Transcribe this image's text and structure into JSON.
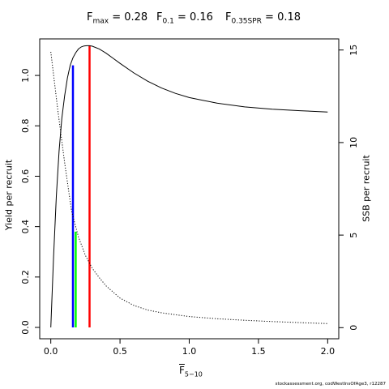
{
  "title": {
    "fmax": {
      "base": "F",
      "sub": "max",
      "value": " = 0.28"
    },
    "f01": {
      "base": "F",
      "sub": "0.1",
      "value": " = 0.16"
    },
    "fspr": {
      "base": "F",
      "sub": "0.35SPR",
      "value": " = 0.18"
    }
  },
  "footer": "stockassessment.org, codWestInsOfAge3, r12287",
  "chart_data": {
    "type": "line",
    "xlabel": {
      "base": "F",
      "sub": "5−10"
    },
    "ylabel_left": "Yield per recruit",
    "ylabel_right": "SSB per recruit",
    "xlim": [
      -0.08,
      2.08
    ],
    "ylim_left": [
      -0.045,
      1.145
    ],
    "ylim_right": [
      -0.6,
      15.6
    ],
    "x_ticks": [
      0.0,
      0.5,
      1.0,
      1.5,
      2.0
    ],
    "x_tick_labels": [
      "0.0",
      "0.5",
      "1.0",
      "1.5",
      "2.0"
    ],
    "y_left_ticks": [
      0.0,
      0.2,
      0.4,
      0.6,
      0.8,
      1.0
    ],
    "y_left_tick_labels": [
      "0.0",
      "0.2",
      "0.4",
      "0.6",
      "0.8",
      "1.0"
    ],
    "y_right_ticks": [
      0,
      5,
      10,
      15
    ],
    "y_right_tick_labels": [
      "0",
      "5",
      "10",
      "15"
    ],
    "series": [
      {
        "style": "solid",
        "axis": "left",
        "color": "#000000",
        "x": [
          0.0,
          0.02,
          0.04,
          0.06,
          0.08,
          0.1,
          0.12,
          0.14,
          0.16,
          0.18,
          0.2,
          0.22,
          0.24,
          0.26,
          0.28,
          0.3,
          0.35,
          0.4,
          0.45,
          0.5,
          0.6,
          0.7,
          0.8,
          0.9,
          1.0,
          1.2,
          1.4,
          1.6,
          1.8,
          2.0
        ],
        "y": [
          0.0,
          0.28,
          0.52,
          0.7,
          0.83,
          0.92,
          0.99,
          1.04,
          1.07,
          1.09,
          1.105,
          1.113,
          1.117,
          1.118,
          1.118,
          1.116,
          1.105,
          1.088,
          1.068,
          1.048,
          1.01,
          0.977,
          0.95,
          0.929,
          0.912,
          0.89,
          0.875,
          0.866,
          0.86,
          0.855
        ]
      },
      {
        "style": "dotted",
        "axis": "right",
        "color": "#000000",
        "x": [
          0.0,
          0.05,
          0.1,
          0.15,
          0.2,
          0.25,
          0.3,
          0.35,
          0.4,
          0.5,
          0.6,
          0.7,
          0.8,
          1.0,
          1.2,
          1.4,
          1.6,
          1.8,
          2.0
        ],
        "y": [
          14.9,
          11.8,
          8.9,
          6.3,
          4.9,
          3.9,
          3.2,
          2.7,
          2.25,
          1.6,
          1.2,
          0.95,
          0.8,
          0.6,
          0.48,
          0.4,
          0.33,
          0.27,
          0.22
        ]
      }
    ],
    "reference_lines": [
      {
        "name": "F0.1",
        "x": 0.16,
        "y_top": 1.04,
        "color": "#0000ff"
      },
      {
        "name": "F0.35SPR",
        "x": 0.18,
        "y_top": 0.38,
        "color": "#00ff00"
      },
      {
        "name": "Fmax",
        "x": 0.28,
        "y_top": 1.118,
        "color": "#ff0000"
      }
    ],
    "grid": false,
    "legend": "none"
  }
}
